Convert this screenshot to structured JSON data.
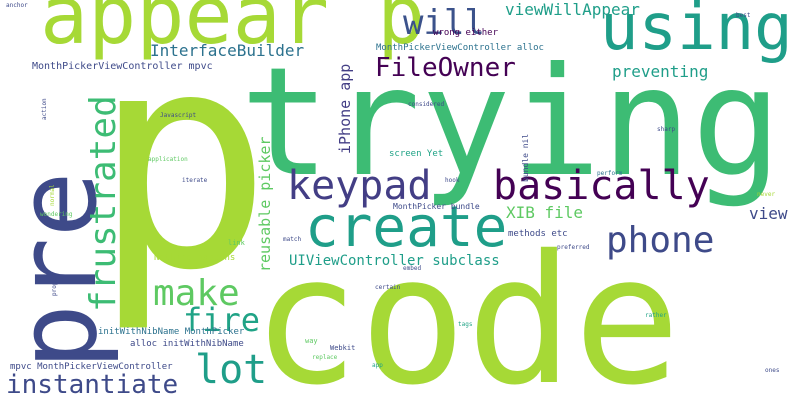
{
  "cloud": {
    "background": "#ffffff",
    "palette": [
      "#440154",
      "#3e4a89",
      "#2c728e",
      "#1f9e89",
      "#3dbc74",
      "#5ec962",
      "#a6d936"
    ],
    "words": {
      "code": "code",
      "trying": "trying",
      "p": "p",
      "pre": "pre",
      "appear": "appear p",
      "using": "using",
      "create": "create",
      "basically": "basically",
      "keypad": "keypad",
      "phone": "phone",
      "frustrated": "frustrated",
      "make": "make",
      "fire": "fire",
      "lot": "lot",
      "instantiate": "instantiate",
      "will": "will",
      "fileowner": "FileOwner",
      "viewwillappear": "viewWillAppear",
      "interfacebuilder": "InterfaceBuilder",
      "preventing": "preventing",
      "xib": "XIB file",
      "view": "view",
      "iphone": "iPhone app",
      "reusable": "reusable picker",
      "uiview": "UIViewController subclass",
      "mpvc_top": "MonthPickerViewController mpvc",
      "mpvc_alloc": "MonthPickerViewController alloc",
      "wrong": "wrong either",
      "screenyet": "screen Yet",
      "hook": "hook",
      "mpbundle": "MonthPicker bundle",
      "methods": "methods etc",
      "nothing": "Nothing happens",
      "link": "link",
      "initmp": "initWithNibName MonthPicker",
      "allocinit": "alloc initWithNibName",
      "mpvc_bot": "mpvc MonthPickerViewController",
      "way": "way",
      "webkit": "Webkit",
      "replace": "replace",
      "app_bot": "app",
      "match": "match",
      "embed": "embed",
      "certain": "certain",
      "tags": "tags",
      "rather": "rather",
      "ones": "ones",
      "preferred": "preferred",
      "never": "never",
      "perform": "perform",
      "sharp": "sharp",
      "best": "best",
      "anchor": "anchor",
      "considered": "considered",
      "javascript": "Javascript",
      "application": "application",
      "iterate": "iterate",
      "bundle_nil": "bundle nil",
      "action": "action",
      "normal": "normal",
      "wondering": "wondering",
      "proper": "proper"
    }
  }
}
